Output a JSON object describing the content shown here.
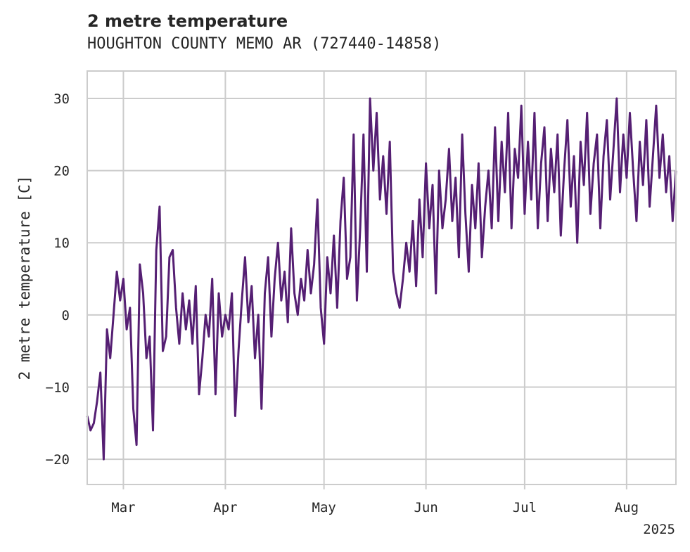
{
  "title": "2 metre temperature",
  "subtitle": "HOUGHTON COUNTY MEMO AR (727440-14858)",
  "colors": {
    "series": "#551f73",
    "grid": "#cccccc",
    "text": "#262626"
  },
  "chart_data": {
    "type": "line",
    "title": "2 metre temperature",
    "subtitle": "HOUGHTON COUNTY MEMO AR (727440-14858)",
    "xlabel": "",
    "ylabel": "2 metre temperature [C]",
    "xlim": [
      "2025-02-18",
      "2025-08-16"
    ],
    "ylim": [
      -23.5,
      33.8
    ],
    "grid": true,
    "x_ticks": [
      "Mar",
      "Apr",
      "May",
      "Jun",
      "Jul",
      "Aug"
    ],
    "x_tick_dates": [
      "2025-03-01",
      "2025-04-01",
      "2025-05-01",
      "2025-06-01",
      "2025-07-01",
      "2025-08-01"
    ],
    "x_offset_label": "2025",
    "y_ticks": [
      -20,
      -10,
      0,
      10,
      20,
      30
    ],
    "series": [
      {
        "values": [
          [
            "2025-02-18",
            -14
          ],
          [
            "2025-02-19",
            -16
          ],
          [
            "2025-02-20",
            -15
          ],
          [
            "2025-02-21",
            -12
          ],
          [
            "2025-02-22",
            -8
          ],
          [
            "2025-02-23",
            -20
          ],
          [
            "2025-02-24",
            -2
          ],
          [
            "2025-02-25",
            -6
          ],
          [
            "2025-02-26",
            0
          ],
          [
            "2025-02-27",
            6
          ],
          [
            "2025-02-28",
            2
          ],
          [
            "2025-03-01",
            5
          ],
          [
            "2025-03-02",
            -2
          ],
          [
            "2025-03-03",
            1
          ],
          [
            "2025-03-04",
            -13
          ],
          [
            "2025-03-05",
            -18
          ],
          [
            "2025-03-06",
            7
          ],
          [
            "2025-03-07",
            3
          ],
          [
            "2025-03-08",
            -6
          ],
          [
            "2025-03-09",
            -3
          ],
          [
            "2025-03-10",
            -16
          ],
          [
            "2025-03-11",
            9
          ],
          [
            "2025-03-12",
            15
          ],
          [
            "2025-03-13",
            -5
          ],
          [
            "2025-03-14",
            -3
          ],
          [
            "2025-03-15",
            8
          ],
          [
            "2025-03-16",
            9
          ],
          [
            "2025-03-17",
            1
          ],
          [
            "2025-03-18",
            -4
          ],
          [
            "2025-03-19",
            3
          ],
          [
            "2025-03-20",
            -2
          ],
          [
            "2025-03-21",
            2
          ],
          [
            "2025-03-22",
            -4
          ],
          [
            "2025-03-23",
            4
          ],
          [
            "2025-03-24",
            -11
          ],
          [
            "2025-03-25",
            -6
          ],
          [
            "2025-03-26",
            0
          ],
          [
            "2025-03-27",
            -3
          ],
          [
            "2025-03-28",
            5
          ],
          [
            "2025-03-29",
            -11
          ],
          [
            "2025-03-30",
            3
          ],
          [
            "2025-03-31",
            -3
          ],
          [
            "2025-04-01",
            0
          ],
          [
            "2025-04-02",
            -2
          ],
          [
            "2025-04-03",
            3
          ],
          [
            "2025-04-04",
            -14
          ],
          [
            "2025-04-05",
            -5
          ],
          [
            "2025-04-06",
            2
          ],
          [
            "2025-04-07",
            8
          ],
          [
            "2025-04-08",
            -1
          ],
          [
            "2025-04-09",
            4
          ],
          [
            "2025-04-10",
            -6
          ],
          [
            "2025-04-11",
            0
          ],
          [
            "2025-04-12",
            -13
          ],
          [
            "2025-04-13",
            3
          ],
          [
            "2025-04-14",
            8
          ],
          [
            "2025-04-15",
            -3
          ],
          [
            "2025-04-16",
            5
          ],
          [
            "2025-04-17",
            10
          ],
          [
            "2025-04-18",
            2
          ],
          [
            "2025-04-19",
            6
          ],
          [
            "2025-04-20",
            -1
          ],
          [
            "2025-04-21",
            12
          ],
          [
            "2025-04-22",
            3
          ],
          [
            "2025-04-23",
            0
          ],
          [
            "2025-04-24",
            5
          ],
          [
            "2025-04-25",
            2
          ],
          [
            "2025-04-26",
            9
          ],
          [
            "2025-04-27",
            3
          ],
          [
            "2025-04-28",
            7
          ],
          [
            "2025-04-29",
            16
          ],
          [
            "2025-04-30",
            1
          ],
          [
            "2025-05-01",
            -4
          ],
          [
            "2025-05-02",
            8
          ],
          [
            "2025-05-03",
            3
          ],
          [
            "2025-05-04",
            11
          ],
          [
            "2025-05-05",
            1
          ],
          [
            "2025-05-06",
            13
          ],
          [
            "2025-05-07",
            19
          ],
          [
            "2025-05-08",
            5
          ],
          [
            "2025-05-09",
            8
          ],
          [
            "2025-05-10",
            25
          ],
          [
            "2025-05-11",
            2
          ],
          [
            "2025-05-12",
            12
          ],
          [
            "2025-05-13",
            25
          ],
          [
            "2025-05-14",
            6
          ],
          [
            "2025-05-15",
            30
          ],
          [
            "2025-05-16",
            20
          ],
          [
            "2025-05-17",
            28
          ],
          [
            "2025-05-18",
            16
          ],
          [
            "2025-05-19",
            22
          ],
          [
            "2025-05-20",
            14
          ],
          [
            "2025-05-21",
            24
          ],
          [
            "2025-05-22",
            6
          ],
          [
            "2025-05-23",
            3
          ],
          [
            "2025-05-24",
            1
          ],
          [
            "2025-05-25",
            5
          ],
          [
            "2025-05-26",
            10
          ],
          [
            "2025-05-27",
            6
          ],
          [
            "2025-05-28",
            13
          ],
          [
            "2025-05-29",
            4
          ],
          [
            "2025-05-30",
            16
          ],
          [
            "2025-05-31",
            8
          ],
          [
            "2025-06-01",
            21
          ],
          [
            "2025-06-02",
            12
          ],
          [
            "2025-06-03",
            18
          ],
          [
            "2025-06-04",
            3
          ],
          [
            "2025-06-05",
            20
          ],
          [
            "2025-06-06",
            12
          ],
          [
            "2025-06-07",
            16
          ],
          [
            "2025-06-08",
            23
          ],
          [
            "2025-06-09",
            13
          ],
          [
            "2025-06-10",
            19
          ],
          [
            "2025-06-11",
            8
          ],
          [
            "2025-06-12",
            25
          ],
          [
            "2025-06-13",
            14
          ],
          [
            "2025-06-14",
            6
          ],
          [
            "2025-06-15",
            18
          ],
          [
            "2025-06-16",
            12
          ],
          [
            "2025-06-17",
            21
          ],
          [
            "2025-06-18",
            8
          ],
          [
            "2025-06-19",
            15
          ],
          [
            "2025-06-20",
            20
          ],
          [
            "2025-06-21",
            12
          ],
          [
            "2025-06-22",
            26
          ],
          [
            "2025-06-23",
            13
          ],
          [
            "2025-06-24",
            24
          ],
          [
            "2025-06-25",
            17
          ],
          [
            "2025-06-26",
            28
          ],
          [
            "2025-06-27",
            12
          ],
          [
            "2025-06-28",
            23
          ],
          [
            "2025-06-29",
            19
          ],
          [
            "2025-06-30",
            29
          ],
          [
            "2025-07-01",
            14
          ],
          [
            "2025-07-02",
            24
          ],
          [
            "2025-07-03",
            16
          ],
          [
            "2025-07-04",
            28
          ],
          [
            "2025-07-05",
            12
          ],
          [
            "2025-07-06",
            21
          ],
          [
            "2025-07-07",
            26
          ],
          [
            "2025-07-08",
            13
          ],
          [
            "2025-07-09",
            23
          ],
          [
            "2025-07-10",
            17
          ],
          [
            "2025-07-11",
            25
          ],
          [
            "2025-07-12",
            11
          ],
          [
            "2025-07-13",
            20
          ],
          [
            "2025-07-14",
            27
          ],
          [
            "2025-07-15",
            15
          ],
          [
            "2025-07-16",
            22
          ],
          [
            "2025-07-17",
            10
          ],
          [
            "2025-07-18",
            24
          ],
          [
            "2025-07-19",
            18
          ],
          [
            "2025-07-20",
            28
          ],
          [
            "2025-07-21",
            14
          ],
          [
            "2025-07-22",
            21
          ],
          [
            "2025-07-23",
            25
          ],
          [
            "2025-07-24",
            12
          ],
          [
            "2025-07-25",
            22
          ],
          [
            "2025-07-26",
            27
          ],
          [
            "2025-07-27",
            16
          ],
          [
            "2025-07-28",
            23
          ],
          [
            "2025-07-29",
            30
          ],
          [
            "2025-07-30",
            17
          ],
          [
            "2025-07-31",
            25
          ],
          [
            "2025-08-01",
            19
          ],
          [
            "2025-08-02",
            28
          ],
          [
            "2025-08-03",
            20
          ],
          [
            "2025-08-04",
            13
          ],
          [
            "2025-08-05",
            24
          ],
          [
            "2025-08-06",
            18
          ],
          [
            "2025-08-07",
            27
          ],
          [
            "2025-08-08",
            15
          ],
          [
            "2025-08-09",
            22
          ],
          [
            "2025-08-10",
            29
          ],
          [
            "2025-08-11",
            19
          ],
          [
            "2025-08-12",
            25
          ],
          [
            "2025-08-13",
            17
          ],
          [
            "2025-08-14",
            22
          ],
          [
            "2025-08-15",
            13
          ],
          [
            "2025-08-16",
            20
          ]
        ]
      }
    ]
  }
}
